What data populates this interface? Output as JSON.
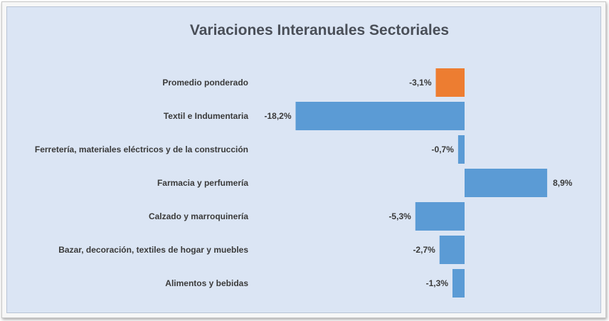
{
  "chart_data": {
    "type": "bar",
    "orientation": "horizontal",
    "title": "Variaciones Interanuales Sectoriales",
    "categories": [
      "Promedio ponderado",
      "Textil e Indumentaria",
      "Ferretería, materiales eléctricos y  de la construcción",
      "Farmacia y perfumería",
      "Calzado y marroquinería",
      "Bazar, decoración, textiles de hogar y muebles",
      "Alimentos y bebidas"
    ],
    "values": [
      -3.1,
      -18.2,
      -0.7,
      8.9,
      -5.3,
      -2.7,
      -1.3
    ],
    "value_labels": [
      "-3,1%",
      "-18,2%",
      "-0,7%",
      "8,9%",
      "-5,3%",
      "-2,7%",
      "-1,3%"
    ],
    "unit": "%",
    "colors": {
      "highlight": "#ed7d31",
      "default": "#5b9bd5"
    },
    "highlight_index": 0,
    "xlabel": "",
    "ylabel": "",
    "grid": false,
    "legend": "none"
  }
}
